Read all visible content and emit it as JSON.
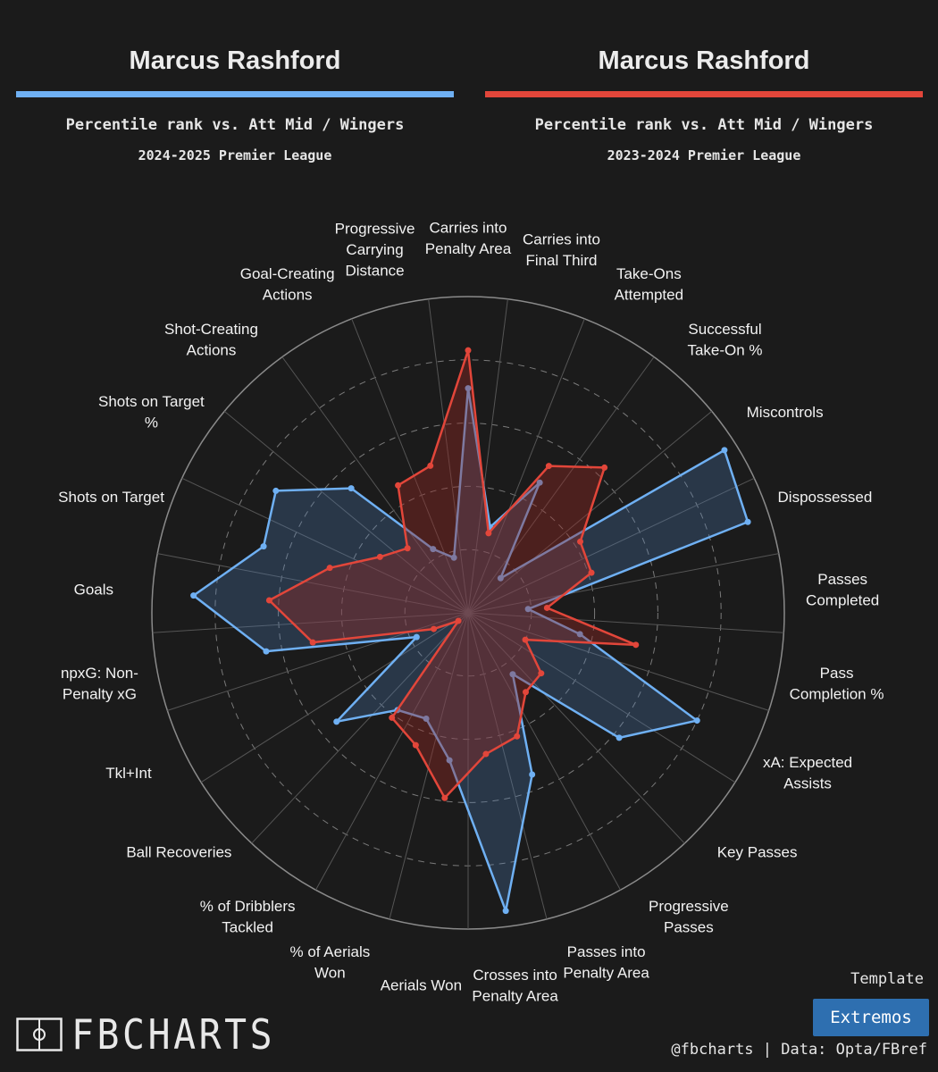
{
  "header": {
    "left": {
      "player": "Marcus Rashford",
      "subtitle": "Percentile rank vs. Att Mid / Wingers",
      "season": "2024-2025 Premier League",
      "color": "#6fb0f3"
    },
    "right": {
      "player": "Marcus Rashford",
      "subtitle": "Percentile rank vs. Att Mid / Wingers",
      "season": "2023-2024 Premier League",
      "color": "#e2463a"
    }
  },
  "chart_data": {
    "type": "radar",
    "range": [
      0,
      100
    ],
    "rings": [
      20,
      40,
      60,
      80,
      100
    ],
    "start_metric_angle": "top (Carries into Penalty Area)",
    "direction": "clockwise",
    "metrics": [
      {
        "label": "Carries into Penalty Area",
        "lines": [
          "Carries into",
          "Penalty Area"
        ]
      },
      {
        "label": "Carries into Final Third",
        "lines": [
          "Carries into",
          "Final Third"
        ]
      },
      {
        "label": "Take-Ons Attempted",
        "lines": [
          "Take-Ons",
          "Attempted"
        ]
      },
      {
        "label": "Successful Take-On %",
        "lines": [
          "Successful",
          "Take-On %"
        ]
      },
      {
        "label": "Miscontrols",
        "lines": [
          "Miscontrols"
        ]
      },
      {
        "label": "Dispossessed",
        "lines": [
          "Dispossessed"
        ]
      },
      {
        "label": "Passes Completed",
        "lines": [
          "Passes",
          "Completed"
        ]
      },
      {
        "label": "Pass Completion %",
        "lines": [
          "Pass",
          "Completion %"
        ]
      },
      {
        "label": "xA: Expected Assists",
        "lines": [
          "xA: Expected",
          "Assists"
        ]
      },
      {
        "label": "Key Passes",
        "lines": [
          "Key Passes"
        ]
      },
      {
        "label": "Progressive Passes",
        "lines": [
          "Progressive",
          "Passes"
        ]
      },
      {
        "label": "Passes into Penalty Area",
        "lines": [
          "Passes into",
          "Penalty Area"
        ]
      },
      {
        "label": "Crosses into Penalty Area",
        "lines": [
          "Crosses into",
          "Penalty Area"
        ]
      },
      {
        "label": "Aerials Won",
        "lines": [
          "Aerials Won"
        ]
      },
      {
        "label": "% of Aerials Won",
        "lines": [
          "% of Aerials",
          "Won"
        ]
      },
      {
        "label": "% of Dribblers Tackled",
        "lines": [
          "% of Dribblers",
          "Tackled"
        ]
      },
      {
        "label": "Ball Recoveries",
        "lines": [
          "Ball Recoveries"
        ]
      },
      {
        "label": "Tkl+Int",
        "lines": [
          "Tkl+Int"
        ]
      },
      {
        "label": "npxG: Non-Penalty xG",
        "lines": [
          "npxG: Non-",
          "Penalty xG"
        ]
      },
      {
        "label": "Goals",
        "lines": [
          "Goals"
        ]
      },
      {
        "label": "Shots on Target",
        "lines": [
          "Shots on Target"
        ]
      },
      {
        "label": "Shots on Target %",
        "lines": [
          "Shots on Target",
          "%"
        ]
      },
      {
        "label": "Shot-Creating Actions",
        "lines": [
          "Shot-Creating",
          "Actions"
        ]
      },
      {
        "label": "Goal-Creating Actions",
        "lines": [
          "Goal-Creating",
          "Actions"
        ]
      },
      {
        "label": "Progressive Carrying Distance",
        "lines": [
          "Progressive",
          "Carrying",
          "Distance"
        ]
      }
    ],
    "series": [
      {
        "name": "2024-2025 Premier League",
        "color": "#6fb0f3",
        "values": [
          71,
          28,
          47,
          15,
          96,
          93,
          19,
          36,
          80,
          62,
          24,
          55,
          95,
          47,
          36,
          38,
          54,
          18,
          65,
          87,
          68,
          72,
          54,
          23,
          18
        ]
      },
      {
        "name": "2023-2024 Premier League",
        "color": "#e2463a",
        "values": [
          83,
          26,
          53,
          63,
          42,
          41,
          25,
          54,
          20,
          30,
          31,
          42,
          45,
          59,
          45,
          41,
          4,
          12,
          50,
          63,
          46,
          33,
          28,
          46,
          48
        ]
      }
    ]
  },
  "footer": {
    "brand": "FBCHARTS",
    "template_label": "Template",
    "template_name": "Extremos",
    "source": "@fbcharts | Data: Opta/FBref"
  }
}
